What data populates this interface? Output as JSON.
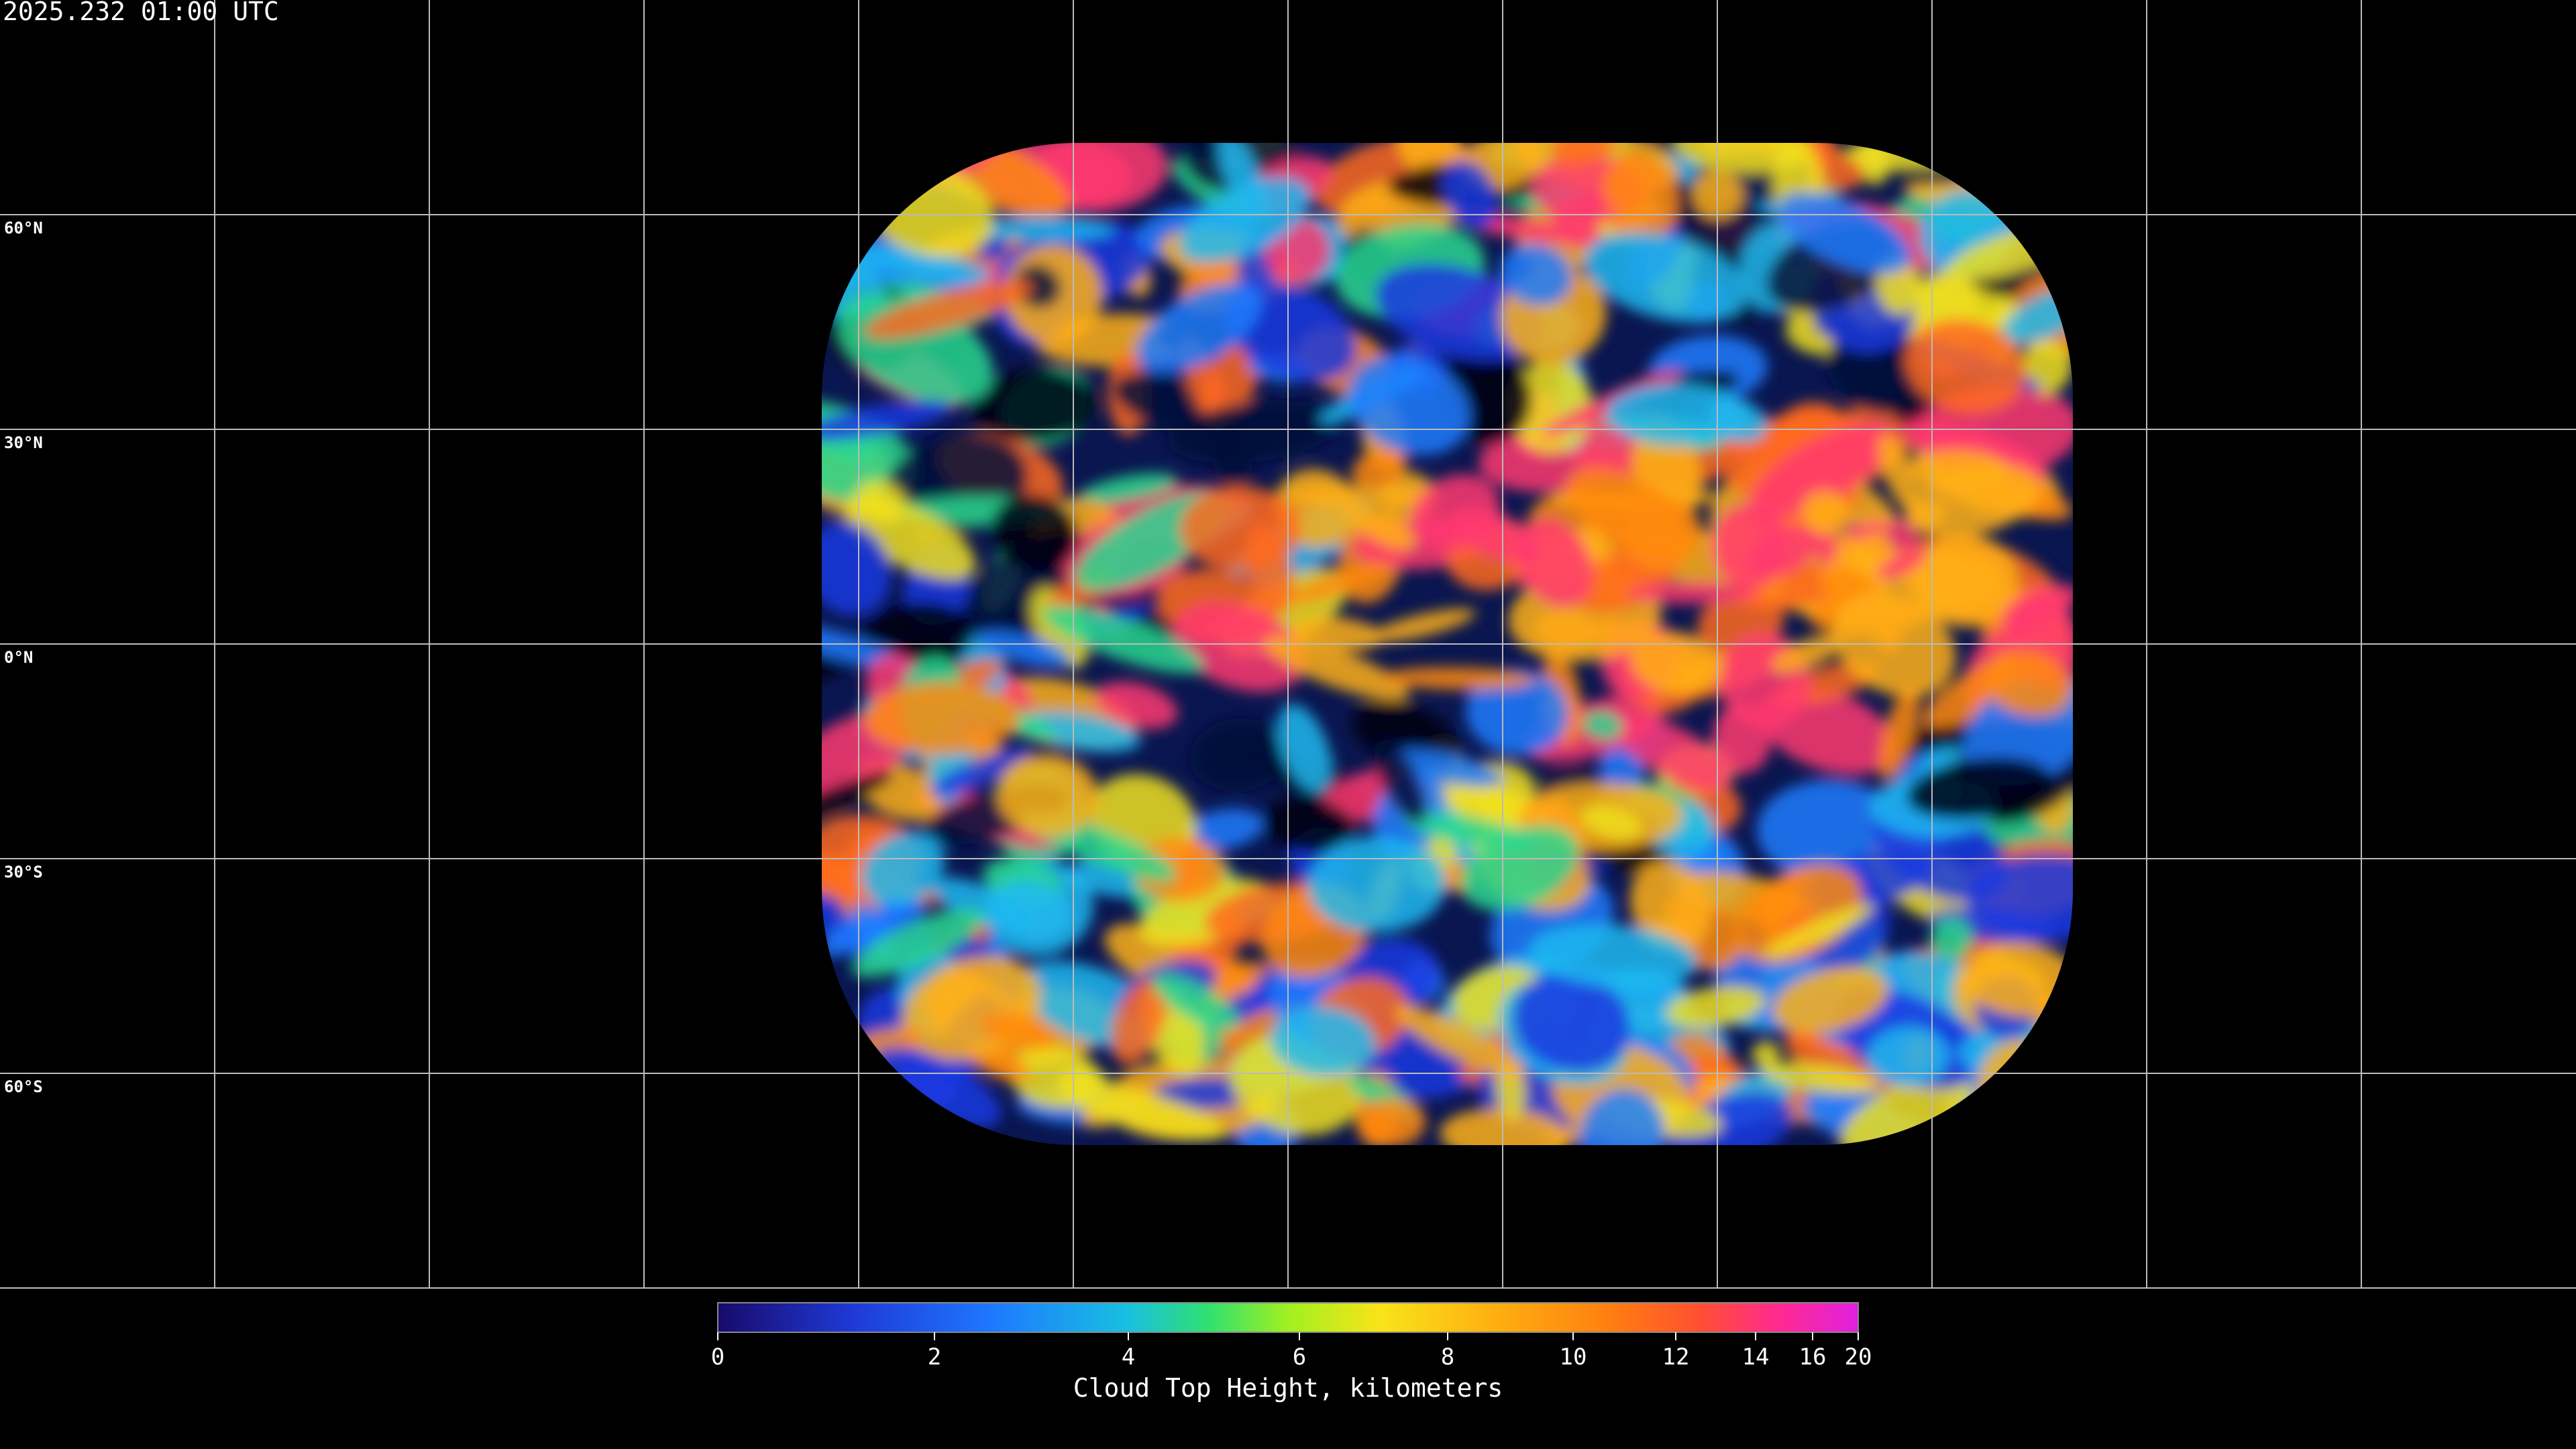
{
  "timestamp": "2025.232 01:00 UTC",
  "latitude_labels": [
    {
      "value": 60,
      "label": "60°N"
    },
    {
      "value": 30,
      "label": "30°N"
    },
    {
      "value": 0,
      "label": "0°N"
    },
    {
      "value": -30,
      "label": "30°S"
    },
    {
      "value": -60,
      "label": "60°S"
    }
  ],
  "colorbar": {
    "title": "Cloud Top Height, kilometers",
    "range": [
      0,
      20
    ],
    "ticks": [
      0,
      2,
      4,
      6,
      8,
      10,
      12,
      14,
      16,
      20
    ]
  }
}
